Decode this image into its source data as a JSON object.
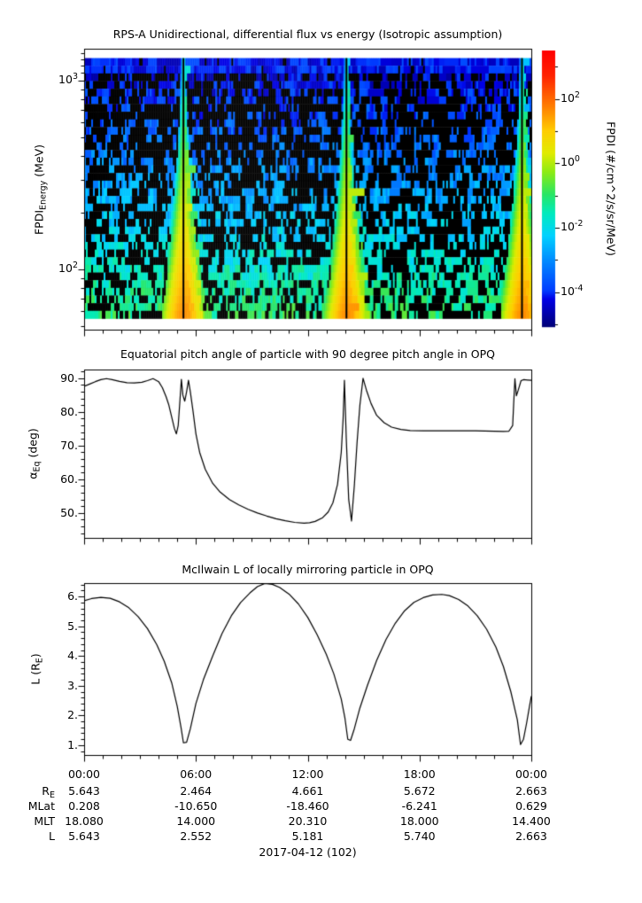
{
  "figure": {
    "date_label": "2017-04-12 (102)",
    "colors": {
      "foreground": "#000000",
      "background": "#ffffff",
      "curve": "#000000",
      "gap": "#000000"
    }
  },
  "xaxis": {
    "major_hours": [
      0,
      6,
      12,
      18,
      24
    ],
    "major_tick_labels": [
      "00:00",
      "06:00",
      "12:00",
      "18:00",
      "00:00"
    ],
    "minor_step_hours": 1
  },
  "ephemeris": {
    "rows": [
      {
        "label": "R_E",
        "label_base": "R",
        "label_sub": "E",
        "values": [
          "5.643",
          "2.464",
          "4.661",
          "5.672",
          "2.663"
        ]
      },
      {
        "label": "MLat",
        "values": [
          "0.208",
          "-10.650",
          "-18.460",
          "-6.241",
          "0.629"
        ]
      },
      {
        "label": "MLT",
        "values": [
          "18.080",
          "14.000",
          "20.310",
          "18.000",
          "14.400"
        ]
      },
      {
        "label": "L",
        "values": [
          "5.643",
          "2.552",
          "5.181",
          "5.740",
          "2.663"
        ]
      }
    ]
  },
  "chart_data": [
    {
      "type": "heatmap",
      "title": "RPS-A Unidirectional, differential flux vs energy (Isotropic assumption)",
      "ylabel": "FPDI_Energy (MeV)",
      "ylabel_parts": {
        "base": "FPDI",
        "sub": "Energy",
        "rest": " (MeV)"
      },
      "x_hours_range": [
        0,
        24
      ],
      "energy_axis_range_mev": [
        48,
        1480
      ],
      "energy_data_range_mev": [
        55,
        1320
      ],
      "energy_major_ticks_mev": [
        1000,
        100
      ],
      "y_tick_labels": [
        {
          "base": "10",
          "exp": "3"
        },
        {
          "base": "10",
          "exp": "2"
        }
      ],
      "energy_minor_ticks_mev": [
        50,
        60,
        70,
        80,
        90,
        200,
        300,
        400,
        500,
        600,
        700,
        800,
        900,
        1100,
        1200,
        1300,
        1400
      ],
      "n_time_bins": 252,
      "n_energy_bins": 34,
      "perigee_plume_hours": [
        5.33,
        14.08,
        23.5
      ],
      "background_log10_flux": {
        "top": -4.55,
        "bottom": -1.0,
        "noise": 0.5
      },
      "plume_peak_log10_flux": {
        "top": -1.6,
        "bottom": 1.7
      },
      "plume_halfwidth_hours": {
        "top": 0.13,
        "bottom": 1.25
      },
      "seed": 42,
      "colorbar": {
        "label": "FPDI (#/cm^2/s/sr/MeV)",
        "log10_range": [
          -5.05,
          3.5
        ],
        "tick_exponents_all": [
          3,
          2,
          1,
          0,
          -1,
          -2,
          -3,
          -4,
          -5
        ],
        "tick_exponents_labeled": [
          2,
          0,
          -2,
          -4
        ],
        "tick_labels": [
          {
            "base": "10",
            "exp": "2"
          },
          {
            "base": "10",
            "exp": "0"
          },
          {
            "base": "10",
            "exp": "-2"
          },
          {
            "base": "10",
            "exp": "-4"
          }
        ]
      },
      "colormap_stops": [
        [
          0.0,
          [
            0,
            0,
            120
          ]
        ],
        [
          0.1,
          [
            0,
            0,
            230
          ]
        ],
        [
          0.13,
          [
            0,
            60,
            255
          ]
        ],
        [
          0.24,
          [
            0,
            140,
            255
          ]
        ],
        [
          0.33,
          [
            0,
            210,
            255
          ]
        ],
        [
          0.41,
          [
            0,
            235,
            190
          ]
        ],
        [
          0.48,
          [
            40,
            230,
            100
          ]
        ],
        [
          0.56,
          [
            140,
            235,
            20
          ]
        ],
        [
          0.63,
          [
            225,
            235,
            0
          ]
        ],
        [
          0.71,
          [
            255,
            205,
            0
          ]
        ],
        [
          0.8,
          [
            255,
            125,
            0
          ]
        ],
        [
          0.91,
          [
            255,
            35,
            0
          ]
        ],
        [
          1.0,
          [
            255,
            0,
            0
          ]
        ]
      ]
    },
    {
      "type": "line",
      "title": "Equatorial pitch angle of particle with 90 degree pitch angle in OPQ",
      "ylabel": "α_Eq (deg)",
      "ylabel_parts": {
        "base": "α",
        "sub": "Eq",
        "rest": " (deg)"
      },
      "ylim": [
        42.6,
        92.6
      ],
      "y_major_ticks": [
        90,
        80,
        70,
        60,
        50
      ],
      "y_tick_labels": [
        "90.",
        "80.",
        "70.",
        "60.",
        "50."
      ],
      "y_minor_step": 2,
      "x_hours": [
        0,
        0.3,
        0.6,
        0.9,
        1.2,
        1.5,
        1.9,
        2.3,
        2.7,
        3.1,
        3.4,
        3.7,
        4.0,
        4.2,
        4.4,
        4.55,
        4.7,
        4.85,
        4.95,
        5.05,
        5.15,
        5.22,
        5.3,
        5.4,
        5.5,
        5.6,
        5.7,
        5.85,
        6.0,
        6.2,
        6.5,
        6.9,
        7.3,
        7.8,
        8.3,
        8.8,
        9.3,
        9.8,
        10.3,
        10.8,
        11.3,
        11.8,
        12.1,
        12.4,
        12.8,
        13.1,
        13.35,
        13.6,
        13.8,
        13.9,
        13.97,
        14.07,
        14.2,
        14.35,
        14.5,
        14.65,
        14.8,
        14.97,
        15.15,
        15.4,
        15.7,
        16.1,
        16.5,
        17.0,
        17.5,
        18.2,
        19.0,
        20.0,
        21.0,
        22.0,
        22.5,
        22.8,
        23.0,
        23.05,
        23.12,
        23.2,
        23.3,
        23.45,
        23.6,
        23.8,
        24
      ],
      "y_deg": [
        87.6,
        88.3,
        89.0,
        89.6,
        89.9,
        89.6,
        89.1,
        88.7,
        88.6,
        88.8,
        89.3,
        89.9,
        89.0,
        87.2,
        84.5,
        82.0,
        78.5,
        75.0,
        73.5,
        76.0,
        84.0,
        89.7,
        85.0,
        83.2,
        86.0,
        89.4,
        86.0,
        80.0,
        73.5,
        68.0,
        63.0,
        58.8,
        56.2,
        54.0,
        52.4,
        51.1,
        50.0,
        49.1,
        48.3,
        47.7,
        47.2,
        47.0,
        47.1,
        47.5,
        48.6,
        50.3,
        53.0,
        58.5,
        68.0,
        78.0,
        89.4,
        72.0,
        54.0,
        47.6,
        58.0,
        71.0,
        82.0,
        90.0,
        86.5,
        82.5,
        79.0,
        76.8,
        75.5,
        74.8,
        74.5,
        74.4,
        74.4,
        74.4,
        74.4,
        74.3,
        74.2,
        74.3,
        76.0,
        82.0,
        89.9,
        84.8,
        86.5,
        89.3,
        89.6,
        89.5,
        89.4
      ]
    },
    {
      "type": "line",
      "title": "McIlwain L of locally mirroring particle in OPQ",
      "ylabel": "L (R_E)",
      "ylabel_parts": {
        "base": "L (R",
        "sub": "E",
        "rest": ")"
      },
      "ylim": [
        0.67,
        6.45
      ],
      "y_major_ticks": [
        6,
        5,
        4,
        3,
        2,
        1
      ],
      "y_tick_labels": [
        "6.",
        "5.",
        "4.",
        "3.",
        "2.",
        "1."
      ],
      "y_minor_step": 0.2,
      "x_hours": [
        0,
        0.4,
        0.9,
        1.4,
        1.9,
        2.4,
        2.9,
        3.4,
        3.9,
        4.3,
        4.7,
        5.0,
        5.2,
        5.33,
        5.5,
        5.7,
        6.0,
        6.4,
        6.9,
        7.4,
        7.9,
        8.4,
        8.9,
        9.3,
        9.7,
        10.1,
        10.5,
        11.0,
        11.5,
        12.0,
        12.5,
        13.0,
        13.4,
        13.8,
        14.0,
        14.15,
        14.3,
        14.5,
        14.8,
        15.2,
        15.7,
        16.2,
        16.7,
        17.2,
        17.7,
        18.2,
        18.7,
        19.2,
        19.6,
        20.1,
        20.6,
        21.1,
        21.6,
        22.1,
        22.5,
        22.9,
        23.25,
        23.42,
        23.58,
        23.75,
        23.9,
        24
      ],
      "y_l": [
        5.86,
        5.93,
        5.97,
        5.94,
        5.82,
        5.62,
        5.32,
        4.92,
        4.38,
        3.82,
        3.1,
        2.3,
        1.6,
        1.08,
        1.1,
        1.55,
        2.4,
        3.2,
        4.0,
        4.75,
        5.35,
        5.8,
        6.12,
        6.33,
        6.44,
        6.41,
        6.3,
        6.08,
        5.75,
        5.3,
        4.72,
        4.05,
        3.4,
        2.55,
        1.9,
        1.2,
        1.16,
        1.55,
        2.25,
        3.0,
        3.85,
        4.55,
        5.1,
        5.52,
        5.8,
        5.96,
        6.05,
        6.07,
        6.03,
        5.9,
        5.68,
        5.35,
        4.9,
        4.3,
        3.65,
        2.8,
        1.85,
        1.02,
        1.2,
        1.75,
        2.3,
        2.65
      ]
    }
  ]
}
